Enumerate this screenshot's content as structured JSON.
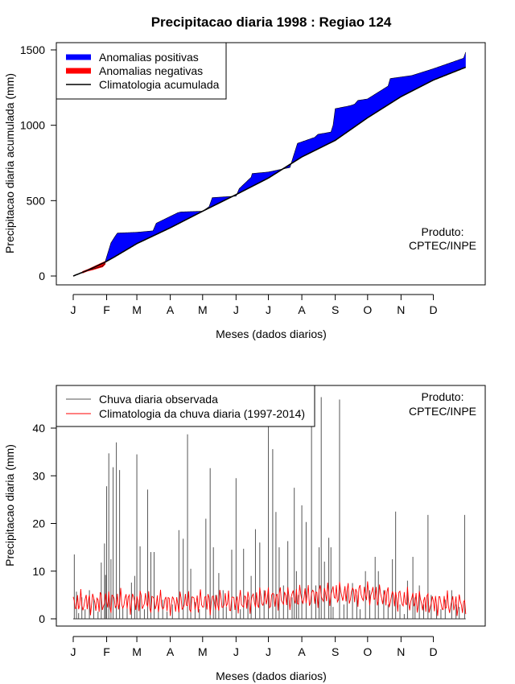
{
  "chart_data": [
    {
      "type": "area",
      "title": "Precipitacao diaria 1998 : Regiao 124",
      "xlabel": "Meses (dados diarios)",
      "ylabel": "Precipitacao diaria acumulada (mm)",
      "xlim": [
        1,
        365
      ],
      "ylim": [
        0,
        1500
      ],
      "yticks": [
        0,
        500,
        1000,
        1500
      ],
      "month_labels": [
        "J",
        "F",
        "M",
        "A",
        "M",
        "J",
        "J",
        "A",
        "S",
        "O",
        "N",
        "D"
      ],
      "month_start_days": [
        1,
        32,
        60,
        91,
        121,
        152,
        182,
        213,
        244,
        274,
        305,
        335
      ],
      "legend": {
        "position": "top-left",
        "entries": [
          {
            "label": "Anomalias positivas",
            "color": "#0000ff",
            "kind": "thick"
          },
          {
            "label": "Anomalias negativas",
            "color": "#ff0000",
            "kind": "thick"
          },
          {
            "label": "Climatologia acumulada",
            "color": "#000000",
            "kind": "line"
          }
        ]
      },
      "annotation": [
        "Produto:",
        "CPTEC/INPE"
      ],
      "series": [
        {
          "name": "Climatologia acumulada",
          "color": "#000000",
          "x": [
            1,
            15,
            30,
            40,
            60,
            91,
            121,
            152,
            182,
            213,
            244,
            274,
            305,
            335,
            365
          ],
          "y": [
            0,
            40,
            90,
            130,
            215,
            320,
            430,
            540,
            650,
            790,
            900,
            1050,
            1190,
            1300,
            1385
          ]
        },
        {
          "name": "Precipitacao observada acumulada",
          "color": "#0000ff",
          "x": [
            1,
            13,
            20,
            28,
            30,
            33,
            36,
            40,
            42,
            60,
            75,
            78,
            98,
            101,
            121,
            127,
            130,
            152,
            155,
            166,
            167,
            182,
            202,
            205,
            209,
            225,
            228,
            240,
            242,
            244,
            258,
            262,
            265,
            270,
            274,
            293,
            295,
            305,
            315,
            335,
            363,
            365
          ],
          "y": [
            0,
            35,
            48,
            65,
            80,
            150,
            220,
            265,
            285,
            290,
            300,
            350,
            420,
            425,
            430,
            460,
            520,
            530,
            580,
            655,
            680,
            690,
            720,
            790,
            880,
            920,
            940,
            955,
            1000,
            1110,
            1130,
            1140,
            1165,
            1170,
            1175,
            1260,
            1310,
            1320,
            1330,
            1375,
            1445,
            1485
          ]
        }
      ]
    },
    {
      "type": "line",
      "title": "",
      "xlabel": "Meses (dados diarios)",
      "ylabel": "Precipitacao diaria (mm)",
      "xlim": [
        1,
        365
      ],
      "ylim": [
        0,
        47
      ],
      "yticks": [
        0,
        10,
        20,
        30,
        40
      ],
      "month_labels": [
        "J",
        "F",
        "M",
        "A",
        "M",
        "J",
        "J",
        "A",
        "S",
        "O",
        "N",
        "D"
      ],
      "month_start_days": [
        1,
        32,
        60,
        91,
        121,
        152,
        182,
        213,
        244,
        274,
        305,
        335
      ],
      "legend": {
        "position": "top-left",
        "entries": [
          {
            "label": "Chuva diaria observada",
            "color": "#555555",
            "kind": "line"
          },
          {
            "label": "Climatologia da chuva diaria (1997-2014)",
            "color": "#ff0000",
            "kind": "line"
          }
        ]
      },
      "annotation": [
        "Produto:",
        "CPTEC/INPE"
      ],
      "series": [
        {
          "name": "Chuva diaria observada",
          "color": "#555555",
          "x": [
            2,
            4,
            6,
            9,
            12,
            16,
            20,
            24,
            27,
            30,
            31,
            32,
            34,
            36,
            38,
            41,
            44,
            47,
            51,
            55,
            58,
            60,
            63,
            67,
            70,
            73,
            76,
            80,
            84,
            88,
            93,
            99,
            103,
            107,
            110,
            114,
            118,
            124,
            128,
            131,
            133,
            136,
            140,
            143,
            148,
            152,
            156,
            159,
            163,
            166,
            170,
            174,
            178,
            182,
            186,
            189,
            192,
            196,
            200,
            204,
            206,
            208,
            210,
            213,
            217,
            222,
            226,
            229,
            231,
            234,
            238,
            240,
            242,
            248,
            252,
            255,
            260,
            264,
            267,
            272,
            276,
            281,
            284,
            289,
            293,
            297,
            300,
            304,
            308,
            311,
            316,
            318,
            322,
            326,
            330,
            333,
            338,
            342,
            346,
            352,
            356,
            359,
            364
          ],
          "y": [
            13.5,
            5.7,
            1.2,
            4.5,
            2.0,
            6.0,
            4.2,
            1.5,
            11.8,
            15.8,
            9.2,
            27.8,
            34.7,
            12.5,
            31.8,
            37.0,
            31.2,
            2.5,
            3.0,
            7.6,
            9.0,
            34.5,
            15.2,
            2.0,
            27.1,
            14.0,
            14.0,
            2.0,
            4.0,
            1.5,
            3.0,
            18.6,
            16.8,
            38.7,
            10.5,
            3.5,
            2.0,
            21.0,
            31.6,
            15.0,
            5.0,
            9.6,
            6.0,
            2.5,
            14.5,
            29.5,
            2.0,
            14.7,
            4.0,
            9.0,
            18.8,
            16.0,
            6.0,
            41.7,
            35.6,
            22.4,
            15.0,
            7.0,
            16.3,
            4.5,
            27.5,
            10.0,
            5.0,
            23.8,
            20.3,
            45.3,
            7.0,
            15.0,
            46.5,
            12.0,
            17.0,
            15.0,
            2.5,
            46.0,
            3.0,
            6.0,
            7.5,
            5.0,
            2.0,
            10.0,
            6.0,
            13.0,
            10.0,
            6.0,
            3.0,
            12.5,
            22.5,
            3.0,
            1.0,
            8.0,
            13.0,
            4.5,
            7.0,
            3.0,
            21.8,
            5.0,
            3.0,
            2.0,
            4.0,
            6.0,
            3.0,
            2.5,
            21.8
          ]
        },
        {
          "name": "Climatologia da chuva diaria (1997-2014)",
          "color": "#ff0000",
          "x": [
            1,
            31,
            60,
            91,
            121,
            152,
            182,
            213,
            244,
            274,
            305,
            335,
            365
          ],
          "y": [
            3.3,
            3.6,
            3.7,
            3.2,
            3.6,
            3.5,
            4.2,
            4.6,
            5.3,
            5.2,
            4.1,
            3.2,
            3.0
          ]
        }
      ]
    }
  ]
}
